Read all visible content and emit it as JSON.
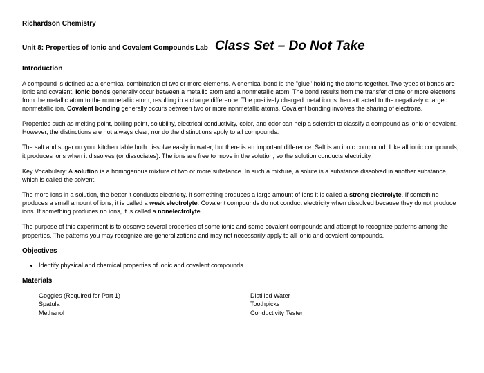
{
  "course": "Richardson Chemistry",
  "unit": "Unit 8: Properties of Ionic and Covalent Compounds Lab",
  "banner": "Class Set – Do Not Take",
  "sections": {
    "intro_h": "Introduction",
    "p1_a": "A compound is defined as a chemical combination of two or more elements. A chemical bond is the \"glue\" holding the atoms together. Two types of bonds are ionic and covalent. ",
    "p1_b": "Ionic bonds",
    "p1_c": " generally occur between a metallic atom and a nonmetallic atom. The bond results from the transfer of one or more electrons from the metallic atom to the nonmetallic atom, resulting in a charge difference. The positively charged metal ion is then attracted to the negatively charged nonmetallic ion. ",
    "p1_d": "Covalent bonding",
    "p1_e": " generally occurs between two or more nonmetallic atoms. Covalent bonding involves the sharing of electrons.",
    "p2": "Properties such as melting point, boiling point, solubility, electrical conductivity, color, and odor can help a scientist to classify a compound as ionic or covalent. However, the distinctions are not always clear, nor do the distinctions apply to all compounds.",
    "p3": "The salt and sugar on your kitchen table both dissolve easily in water, but there is an important difference. Salt is an ionic compound. Like all ionic compounds, it produces ions when it dissolves (or dissociates). The ions are free to move in the solution, so the solution conducts electricity.",
    "p4_a": "Key Vocabulary: A ",
    "p4_b": "solution",
    "p4_c": " is a homogenous mixture of two or more substance. In such a mixture, a solute is a substance dissolved in another substance, which is called the solvent.",
    "p5_a": "The more ions in a solution, the better it conducts electricity. If something produces a large amount of ions it is called a ",
    "p5_b": "strong electrolyte",
    "p5_c": ". If something produces a small amount of ions, it is called a ",
    "p5_d": "weak electrolyte",
    "p5_e": ". Covalent compounds do not conduct electricity when dissolved because they do not produce ions. If something produces no ions, it is called a ",
    "p5_f": "nonelectrolyte",
    "p5_g": ".",
    "p6": "The purpose of this experiment is to observe several properties of some ionic and some covalent compounds and attempt to recognize patterns among the properties. The patterns you may recognize are generalizations and may not necessarily apply to all ionic and covalent compounds.",
    "obj_h": "Objectives",
    "obj_1": "Identify physical and chemical properties of ionic and covalent compounds.",
    "mat_h": "Materials",
    "mat_l1": "Goggles (Required for Part 1)",
    "mat_l2": "Spatula",
    "mat_l3": "Methanol",
    "mat_r1": "Distilled Water",
    "mat_r2": "Toothpicks",
    "mat_r3": "Conductivity Tester"
  },
  "style": {
    "bg": "#ffffff",
    "text": "#000000",
    "body_fs": 9,
    "heading_fs": 10,
    "banner_fs": 19,
    "font": "Arial"
  }
}
